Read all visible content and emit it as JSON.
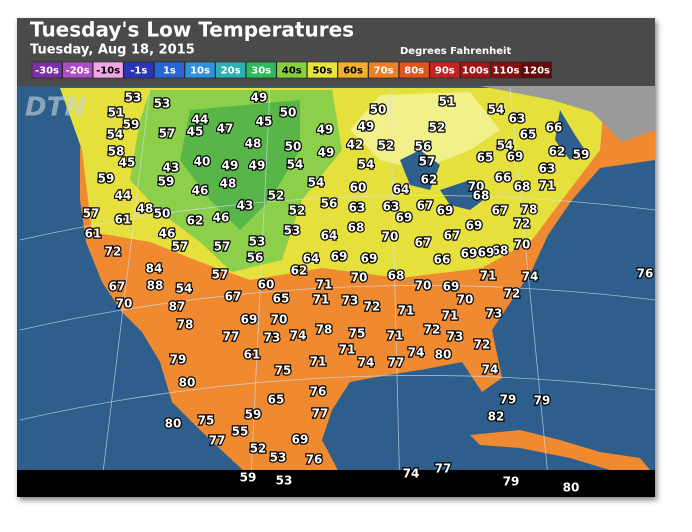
{
  "header": {
    "title": "Tuesday's Low Temperatures",
    "subtitle": "Tuesday, Aug 18, 2015",
    "units": "Degrees Fahrenheit",
    "watermark": "DTN"
  },
  "legend": [
    {
      "label": "-30s",
      "color": "#7a2fa6"
    },
    {
      "label": "-20s",
      "color": "#b04cc4"
    },
    {
      "label": "-10s",
      "color": "#f2a6e6"
    },
    {
      "label": "-1s",
      "color": "#2a35b8"
    },
    {
      "label": "1s",
      "color": "#2866d8"
    },
    {
      "label": "10s",
      "color": "#2f92dc"
    },
    {
      "label": "20s",
      "color": "#2fb0b0"
    },
    {
      "label": "30s",
      "color": "#2fba5a"
    },
    {
      "label": "40s",
      "color": "#86cf3e"
    },
    {
      "label": "50s",
      "color": "#e6e33c"
    },
    {
      "label": "60s",
      "color": "#f2b02e"
    },
    {
      "label": "70s",
      "color": "#f07f22"
    },
    {
      "label": "80s",
      "color": "#e2541e"
    },
    {
      "label": "90s",
      "color": "#c62222"
    },
    {
      "label": "100s",
      "color": "#a51414"
    },
    {
      "label": "110s",
      "color": "#861010"
    },
    {
      "label": "120s",
      "color": "#640a0a"
    }
  ],
  "stations": [
    53,
    53,
    49,
    50,
    51,
    54,
    63,
    51,
    59,
    44,
    50,
    45,
    66,
    54,
    57,
    45,
    47,
    49,
    49,
    52,
    65,
    58,
    48,
    50,
    42,
    52,
    56,
    54,
    65,
    69,
    62,
    59,
    45,
    43,
    40,
    49,
    49,
    54,
    49,
    54,
    57,
    63,
    59,
    59,
    48,
    54,
    60,
    64,
    62,
    70,
    66,
    68,
    71,
    44,
    46,
    52,
    68,
    48,
    50,
    43,
    52,
    56,
    63,
    63,
    67,
    69,
    67,
    78,
    57,
    61,
    62,
    46,
    69,
    69,
    72,
    61,
    46,
    53,
    64,
    68,
    70,
    67,
    67,
    68,
    70,
    72,
    57,
    57,
    53,
    56,
    69,
    64,
    69,
    69,
    66,
    69,
    84,
    62,
    70,
    68,
    71,
    74,
    76,
    67,
    88,
    54,
    57,
    60,
    71,
    70,
    69,
    72,
    70,
    87,
    67,
    65,
    71,
    73,
    72,
    71,
    70,
    78,
    69,
    70,
    78,
    75,
    71,
    73,
    77,
    73,
    74,
    71,
    72,
    73,
    72,
    79,
    61,
    71,
    71,
    74,
    77,
    74,
    80,
    80,
    75,
    74,
    76,
    65,
    79,
    79,
    59,
    77,
    82,
    80,
    75,
    55,
    77,
    69,
    52,
    53,
    76,
    74,
    77,
    59,
    53,
    79,
    80
  ]
}
